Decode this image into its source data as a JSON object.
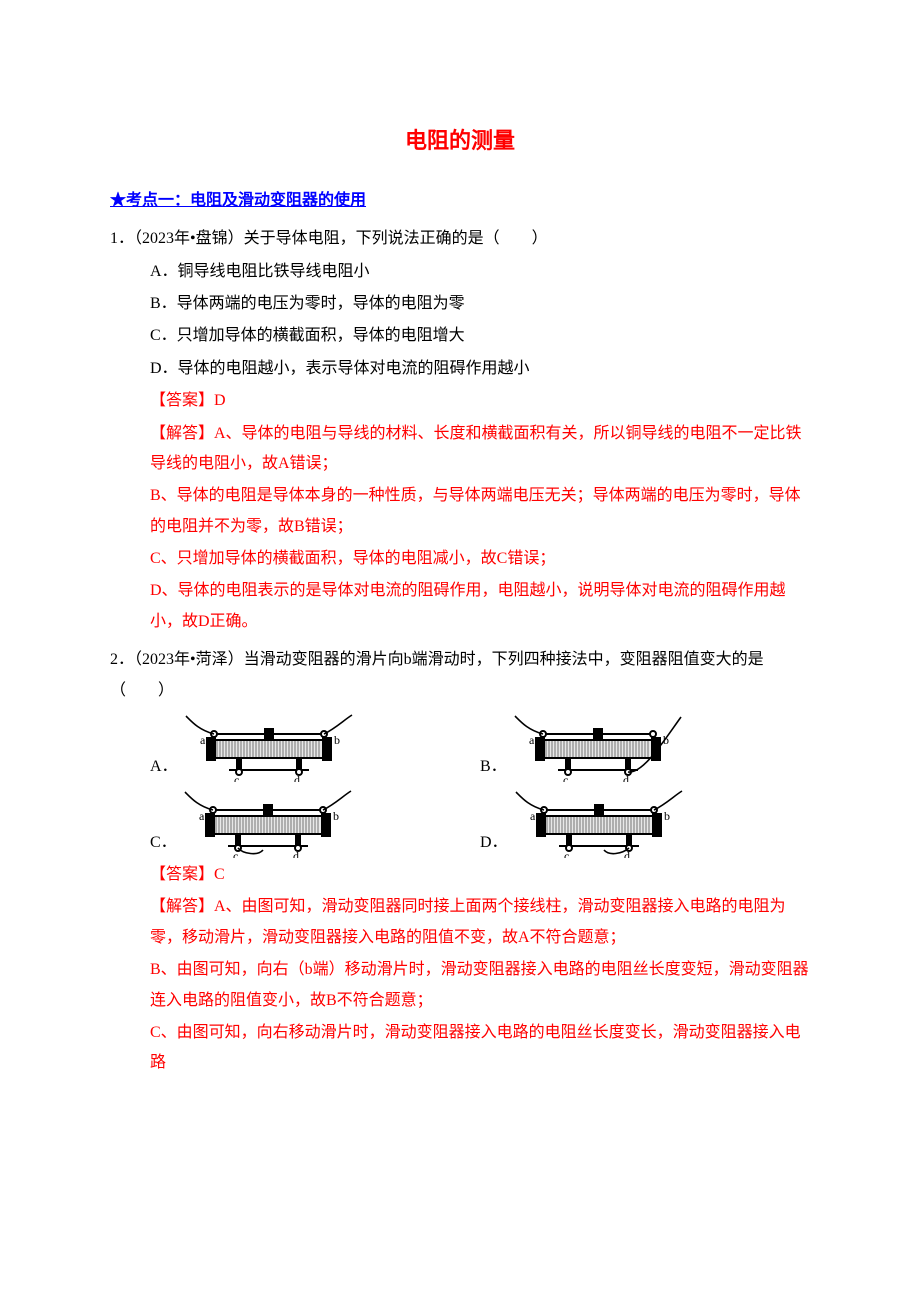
{
  "title": "电阻的测量",
  "section1": "★考点一：电阻及滑动变阻器的使用",
  "q1": {
    "stem": "1．（2023年•盘锦）关于导体电阻，下列说法正确的是（　　）",
    "optA": "A．铜导线电阻比铁导线电阻小",
    "optB": "B．导体两端的电压为零时，导体的电阻为零",
    "optC": "C．只增加导体的横截面积，导体的电阻增大",
    "optD": "D．导体的电阻越小，表示导体对电流的阻碍作用越小",
    "answer": "【答案】D",
    "exp1": "【解答】A、导体的电阻与导线的材料、长度和横截面积有关，所以铜导线的电阻不一定比铁导线的电阻小，故A错误；",
    "exp2": "B、导体的电阻是导体本身的一种性质，与导体两端电压无关；导体两端的电压为零时，导体的电阻并不为零，故B错误；",
    "exp3": "C、只增加导体的横截面积，导体的电阻减小，故C错误；",
    "exp4": "D、导体的电阻表示的是导体对电流的阻碍作用，电阻越小，说明导体对电流的阻碍作用越小，故D正确。"
  },
  "q2": {
    "stem": "2．（2023年•菏泽）当滑动变阻器的滑片向b端滑动时，下列四种接法中，变阻器阻值变大的是（　　）",
    "optA": "A．",
    "optB": "B．",
    "optC": "C．",
    "optD": "D．",
    "answer": "【答案】C",
    "exp1": "【解答】A、由图可知，滑动变阻器同时接上面两个接线柱，滑动变阻器接入电路的电阻为零，移动滑片，滑动变阻器接入电路的阻值不变，故A不符合题意；",
    "exp2": "B、由图可知，向右（b端）移动滑片时，滑动变阻器接入电路的电阻丝长度变短，滑动变阻器连入电路的阻值变小，故B不符合题意；",
    "exp3": "C、由图可知，向右移动滑片时，滑动变阻器接入电路的电阻丝长度变长，滑动变阻器接入电路"
  },
  "diagram": {
    "labels": {
      "a": "a",
      "b": "b",
      "c": "c",
      "d": "d"
    },
    "colors": {
      "stroke": "#000000",
      "fill_dark": "#000000",
      "fill_body": "#e8e8e8",
      "fill_white": "#ffffff"
    },
    "line_width": 2,
    "wire_width": 1.6
  }
}
